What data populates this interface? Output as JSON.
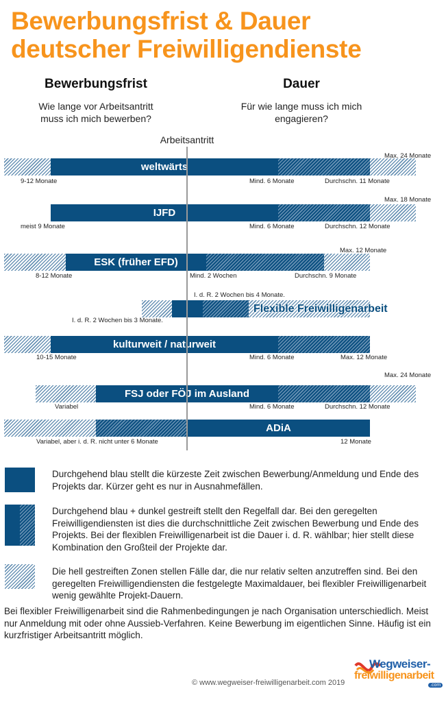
{
  "title_line1": "Bewerbungsfrist & Dauer",
  "title_line2": "deutscher Freiwilligendienste",
  "left_column": {
    "heading": "Bewerbungsfrist",
    "sub1": "Wie lange vor Arbeitsantritt",
    "sub2": "muss ich mich bewerben?"
  },
  "right_column": {
    "heading": "Dauer",
    "sub1": "Für wie lange muss ich mich",
    "sub2": "engagieren?"
  },
  "axis_label": "Arbeitsantritt",
  "colors": {
    "title": "#f7941d",
    "bar_blue": "#0b4f80",
    "hatch_light": "#6a93b5"
  },
  "programs": [
    {
      "name": "weltwärts",
      "application": "9-12 Monate",
      "min": "Mind. 6 Monate",
      "avg": "Durchschn. 11 Monate",
      "max": "Max. 24 Monate"
    },
    {
      "name": "IJFD",
      "application": "meist 9 Monate",
      "min": "Mind. 6 Monate",
      "avg": "Durchschn. 12 Monate",
      "max": "Max. 18 Monate"
    },
    {
      "name": "ESK (früher EFD)",
      "application": "8-12 Monate",
      "min": "Mind. 2 Wochen",
      "avg": "Durchschn. 9 Monate",
      "max": "Max. 12 Monate"
    },
    {
      "name": "Flexible Freiwilligenarbeit",
      "application": "I. d. R. 2 Wochen bis 3 Monate.",
      "duration": "I. d. R. 2 Wochen bis 4 Monate."
    },
    {
      "name": "kulturweit / naturweit",
      "application": "10-15 Monate",
      "min": "Mind. 6 Monate",
      "max": "Max. 12 Monate"
    },
    {
      "name": "FSJ oder FÖJ im Ausland",
      "application": "Variabel",
      "min": "Mind. 6 Monate",
      "avg": "Durchschn. 12 Monate",
      "max": "Max. 24 Monate"
    },
    {
      "name": "ADiA",
      "application": "Variabel, aber i. d. R. nicht unter 6 Monate",
      "duration": "12 Monate"
    }
  ],
  "legend": [
    {
      "swatch": "solid",
      "text": "Durchgehend blau stellt die kürzeste Zeit zwischen Bewerbung/Anmeldung und Ende des Projekts dar. Kürzer geht es nur in Ausnahmefällen."
    },
    {
      "swatch": "solid+dark-hatch",
      "text": "Durchgehend blau + dunkel gestreift stellt den Regelfall dar. Bei den geregelten Freiwilligendiensten ist dies die durchschnittliche Zeit zwischen Bewerbung und Ende des Projekts. Bei der flexiblen Freiwilligenarbeit ist die Dauer i. d. R. wählbar; hier stellt diese Kombination den Großteil der Projekte dar."
    },
    {
      "swatch": "light-hatch",
      "text": "Die hell gestreiften Zonen stellen Fälle dar, die nur relativ selten anzutreffen sind. Bei den geregelten Freiwilligendiensten die festgelegte Maximaldauer, bei flexibler Freiwilligenarbeit wenig gewählte Projekt-Dauern."
    }
  ],
  "footnote": "Bei flexibler Freiwilligenarbeit sind die Rahmenbedingungen je nach Organisation unterschiedlich. Meist nur Anmeldung mit oder ohne Aussieb-Verfahren. Keine Bewerbung im eigentlichen Sinne. Häufig ist ein kurzfristiger Arbeitsantritt möglich.",
  "copyright": "© www.wegweiser-freiwilligenarbeit.com 2019",
  "logo": {
    "line1": "Wegweiser-",
    "line2": "freiwilligenarbeit",
    "line3": ".com"
  }
}
